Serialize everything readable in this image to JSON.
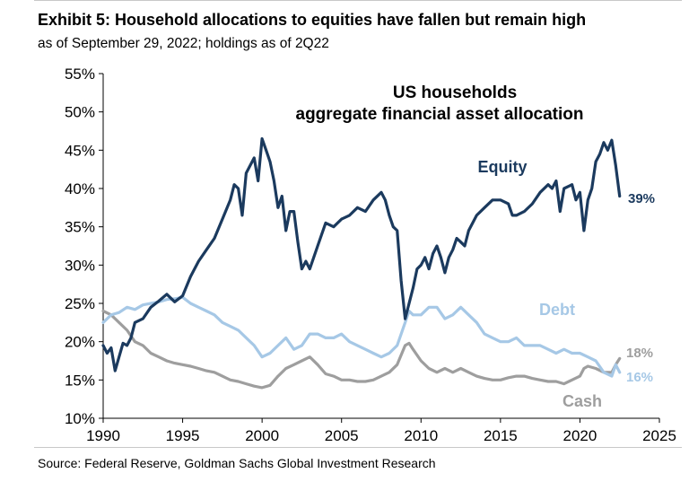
{
  "header": {
    "title": "Exhibit 5: Household allocations to equities have fallen but remain high",
    "subtitle": "as of September 29, 2022; holdings as of 2Q22"
  },
  "footer": {
    "source": "Source: Federal Reserve, Goldman Sachs Global Investment Research"
  },
  "chart_data": {
    "type": "line",
    "title_lines": [
      "US households",
      "aggregate financial asset allocation"
    ],
    "xlabel": "",
    "ylabel": "",
    "xlim": [
      1990,
      2025
    ],
    "ylim": [
      10,
      55
    ],
    "x_ticks": [
      "1990",
      "1995",
      "2000",
      "2005",
      "2010",
      "2015",
      "2020",
      "2025"
    ],
    "y_ticks": [
      "10%",
      "15%",
      "20%",
      "25%",
      "30%",
      "35%",
      "40%",
      "45%",
      "50%",
      "55%"
    ],
    "grid": false,
    "legend": "inline labels",
    "series": [
      {
        "name": "Equity",
        "color": "#1b3a5e",
        "end_label": "39%",
        "x": [
          1990.0,
          1990.25,
          1990.5,
          1990.75,
          1991.0,
          1991.25,
          1991.5,
          1991.75,
          1992.0,
          1992.5,
          1993.0,
          1993.5,
          1994.0,
          1994.5,
          1995.0,
          1995.5,
          1996.0,
          1996.5,
          1997.0,
          1997.5,
          1998.0,
          1998.25,
          1998.5,
          1998.75,
          1999.0,
          1999.5,
          1999.75,
          2000.0,
          2000.25,
          2000.5,
          2000.75,
          2001.0,
          2001.25,
          2001.5,
          2001.75,
          2002.0,
          2002.25,
          2002.5,
          2002.75,
          2003.0,
          2003.5,
          2004.0,
          2004.5,
          2005.0,
          2005.5,
          2006.0,
          2006.5,
          2007.0,
          2007.5,
          2007.75,
          2008.0,
          2008.25,
          2008.5,
          2008.75,
          2009.0,
          2009.25,
          2009.5,
          2009.75,
          2010.0,
          2010.25,
          2010.5,
          2010.75,
          2011.0,
          2011.25,
          2011.5,
          2011.75,
          2012.0,
          2012.25,
          2012.5,
          2012.75,
          2013.0,
          2013.5,
          2014.0,
          2014.5,
          2015.0,
          2015.5,
          2015.75,
          2016.0,
          2016.5,
          2017.0,
          2017.5,
          2018.0,
          2018.25,
          2018.5,
          2018.75,
          2019.0,
          2019.5,
          2019.75,
          2020.0,
          2020.25,
          2020.5,
          2020.75,
          2021.0,
          2021.25,
          2021.5,
          2021.75,
          2022.0,
          2022.25,
          2022.5
        ],
        "values": [
          19.5,
          18.5,
          19.2,
          16.2,
          18.0,
          19.8,
          19.5,
          20.5,
          22.5,
          23.0,
          24.5,
          25.3,
          26.2,
          25.2,
          26.0,
          28.5,
          30.5,
          32.0,
          33.5,
          36.0,
          38.5,
          40.5,
          40.0,
          36.5,
          42.0,
          44.0,
          41.0,
          46.5,
          45.0,
          43.5,
          41.0,
          37.5,
          39.0,
          34.5,
          37.0,
          37.0,
          33.0,
          29.5,
          30.5,
          29.5,
          32.5,
          35.5,
          35.0,
          36.0,
          36.5,
          37.5,
          37.0,
          38.5,
          39.5,
          38.5,
          36.5,
          35.0,
          34.5,
          28.0,
          23.0,
          25.0,
          27.0,
          29.5,
          30.0,
          31.0,
          29.5,
          31.5,
          32.5,
          31.0,
          29.0,
          31.0,
          32.0,
          33.5,
          33.0,
          32.5,
          34.5,
          36.5,
          37.5,
          38.5,
          38.5,
          38.0,
          36.5,
          36.5,
          37.0,
          38.0,
          39.5,
          40.5,
          40.0,
          41.0,
          37.0,
          40.0,
          40.5,
          38.5,
          39.5,
          34.5,
          38.5,
          40.0,
          43.5,
          44.5,
          46.0,
          45.0,
          46.3,
          43.0,
          39.0
        ]
      },
      {
        "name": "Debt",
        "color": "#a6c8e6",
        "end_label": "16%",
        "x": [
          1990.0,
          1990.5,
          1991.0,
          1991.5,
          1992.0,
          1992.5,
          1993.0,
          1993.5,
          1994.0,
          1994.5,
          1995.0,
          1995.5,
          1996.0,
          1996.5,
          1997.0,
          1997.5,
          1998.0,
          1998.5,
          1999.0,
          1999.5,
          2000.0,
          2000.5,
          2001.0,
          2001.5,
          2002.0,
          2002.5,
          2003.0,
          2003.5,
          2004.0,
          2004.5,
          2005.0,
          2005.5,
          2006.0,
          2006.5,
          2007.0,
          2007.5,
          2008.0,
          2008.5,
          2009.0,
          2009.25,
          2009.5,
          2010.0,
          2010.5,
          2011.0,
          2011.5,
          2012.0,
          2012.5,
          2013.0,
          2013.5,
          2014.0,
          2014.5,
          2015.0,
          2015.5,
          2016.0,
          2016.5,
          2017.0,
          2017.5,
          2018.0,
          2018.5,
          2019.0,
          2019.5,
          2020.0,
          2020.5,
          2021.0,
          2021.5,
          2022.0,
          2022.25,
          2022.5
        ],
        "values": [
          22.5,
          23.5,
          23.8,
          24.5,
          24.2,
          24.8,
          25.0,
          25.2,
          25.5,
          25.6,
          25.8,
          25.0,
          24.5,
          24.0,
          23.5,
          22.5,
          22.0,
          21.5,
          20.5,
          19.5,
          18.0,
          18.5,
          19.5,
          20.5,
          19.0,
          19.5,
          21.0,
          21.0,
          20.5,
          20.5,
          21.0,
          20.0,
          19.5,
          19.0,
          18.5,
          18.0,
          18.5,
          19.5,
          22.5,
          24.0,
          23.5,
          23.5,
          24.5,
          24.5,
          23.0,
          23.5,
          24.5,
          23.5,
          22.5,
          21.0,
          20.5,
          20.0,
          20.0,
          20.5,
          19.5,
          19.5,
          19.5,
          19.0,
          18.5,
          19.0,
          18.5,
          18.5,
          18.0,
          17.5,
          16.0,
          15.5,
          17.0,
          16.0
        ]
      },
      {
        "name": "Cash",
        "color": "#9e9e9e",
        "end_label": "18%",
        "x": [
          1990.0,
          1990.5,
          1991.0,
          1991.5,
          1992.0,
          1992.5,
          1993.0,
          1993.5,
          1994.0,
          1994.5,
          1995.0,
          1995.5,
          1996.0,
          1996.5,
          1997.0,
          1997.5,
          1998.0,
          1998.5,
          1999.0,
          1999.5,
          2000.0,
          2000.5,
          2001.0,
          2001.5,
          2002.0,
          2002.5,
          2003.0,
          2003.5,
          2004.0,
          2004.5,
          2005.0,
          2005.5,
          2006.0,
          2006.5,
          2007.0,
          2007.5,
          2008.0,
          2008.5,
          2009.0,
          2009.25,
          2009.5,
          2010.0,
          2010.5,
          2011.0,
          2011.5,
          2012.0,
          2012.5,
          2013.0,
          2013.5,
          2014.0,
          2014.5,
          2015.0,
          2015.5,
          2016.0,
          2016.5,
          2017.0,
          2017.5,
          2018.0,
          2018.5,
          2019.0,
          2019.5,
          2020.0,
          2020.25,
          2020.5,
          2021.0,
          2021.5,
          2022.0,
          2022.25,
          2022.5
        ],
        "values": [
          24.0,
          23.5,
          22.5,
          21.5,
          20.0,
          19.5,
          18.5,
          18.0,
          17.5,
          17.2,
          17.0,
          16.8,
          16.5,
          16.2,
          16.0,
          15.5,
          15.0,
          14.8,
          14.5,
          14.2,
          14.0,
          14.3,
          15.5,
          16.5,
          17.0,
          17.5,
          18.0,
          17.0,
          15.8,
          15.5,
          15.0,
          15.0,
          14.8,
          14.8,
          15.0,
          15.5,
          16.0,
          17.0,
          19.5,
          19.8,
          19.0,
          17.5,
          16.5,
          16.0,
          16.5,
          16.0,
          16.5,
          16.0,
          15.5,
          15.2,
          15.0,
          15.0,
          15.3,
          15.5,
          15.5,
          15.2,
          15.0,
          14.8,
          14.8,
          14.5,
          15.0,
          15.5,
          16.5,
          16.8,
          16.5,
          16.0,
          16.0,
          17.0,
          17.8
        ]
      }
    ]
  }
}
